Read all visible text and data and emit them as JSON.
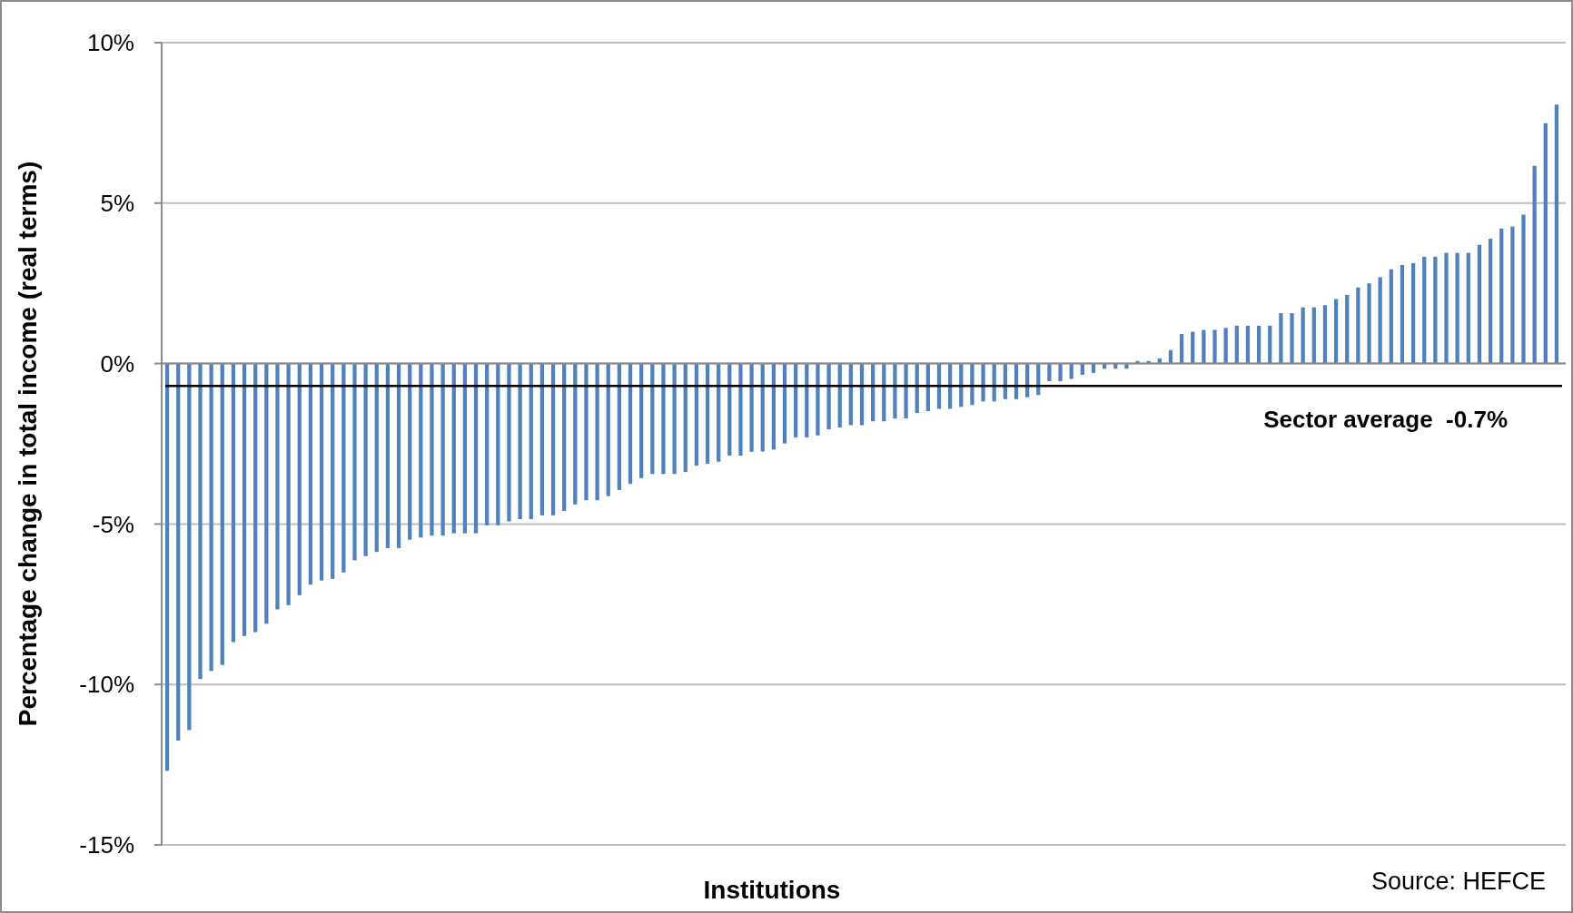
{
  "chart_data": {
    "type": "bar",
    "xlabel": "Institutions",
    "ylabel": "Percentage  change in total income (real terms)",
    "categories": [
      null,
      null,
      null,
      null,
      null,
      null,
      null,
      null,
      null,
      null,
      null,
      null,
      null,
      null,
      null,
      null,
      null,
      null,
      null,
      null,
      null,
      null,
      null,
      null,
      null,
      null,
      null,
      null,
      null,
      null,
      null,
      null,
      null,
      null,
      null,
      null,
      null,
      null,
      null,
      null,
      null,
      null,
      null,
      null,
      null,
      null,
      null,
      null,
      null,
      null,
      null,
      null,
      null,
      null,
      null,
      null,
      null,
      null,
      null,
      null,
      null,
      null,
      null,
      null,
      null,
      null,
      null,
      null,
      null,
      null,
      null,
      null,
      null,
      null,
      null,
      null,
      null,
      null,
      null,
      null,
      null,
      null,
      null,
      null,
      null,
      null,
      null,
      null,
      null,
      null,
      null,
      null,
      null,
      null,
      null,
      null,
      null,
      null,
      null,
      null,
      null,
      null,
      null,
      null,
      null,
      null,
      null,
      null,
      null,
      null,
      null,
      null,
      null,
      null,
      null,
      null,
      null,
      null,
      null,
      null,
      null,
      null,
      null,
      null,
      null,
      null,
      null
    ],
    "values": [
      -12.69,
      -11.75,
      -11.42,
      -9.83,
      -9.58,
      -9.39,
      -8.68,
      -8.49,
      -8.37,
      -8.11,
      -7.66,
      -7.53,
      -7.22,
      -6.89,
      -6.76,
      -6.71,
      -6.51,
      -6.13,
      -6.0,
      -5.87,
      -5.75,
      -5.75,
      -5.49,
      -5.42,
      -5.36,
      -5.36,
      -5.29,
      -5.29,
      -5.29,
      -5.04,
      -5.04,
      -4.92,
      -4.85,
      -4.85,
      -4.73,
      -4.73,
      -4.59,
      -4.39,
      -4.26,
      -4.26,
      -4.13,
      -3.94,
      -3.75,
      -3.57,
      -3.44,
      -3.44,
      -3.44,
      -3.38,
      -3.18,
      -3.12,
      -3.06,
      -2.87,
      -2.87,
      -2.75,
      -2.74,
      -2.68,
      -2.49,
      -2.3,
      -2.3,
      -2.24,
      -2.05,
      -1.99,
      -1.92,
      -1.92,
      -1.8,
      -1.8,
      -1.71,
      -1.71,
      -1.54,
      -1.48,
      -1.41,
      -1.41,
      -1.35,
      -1.29,
      -1.18,
      -1.18,
      -1.11,
      -1.11,
      -1.05,
      -0.98,
      -0.55,
      -0.55,
      -0.48,
      -0.35,
      -0.29,
      -0.16,
      -0.16,
      -0.16,
      0.08,
      0.08,
      0.16,
      0.42,
      0.92,
      0.99,
      1.05,
      1.05,
      1.11,
      1.18,
      1.18,
      1.18,
      1.18,
      1.57,
      1.57,
      1.75,
      1.75,
      1.82,
      2.01,
      2.14,
      2.37,
      2.5,
      2.69,
      2.94,
      3.07,
      3.13,
      3.33,
      3.33,
      3.45,
      3.45,
      3.45,
      3.7,
      3.89,
      4.21,
      4.27,
      4.64,
      6.16,
      7.49,
      8.07
    ],
    "color": "#4f81bd",
    "ylim": [
      -15,
      10
    ],
    "yticks": [
      {
        "value": -15,
        "label": "-15%"
      },
      {
        "value": -10,
        "label": "-10%"
      },
      {
        "value": -5,
        "label": "-5%"
      },
      {
        "value": 0,
        "label": "0%"
      },
      {
        "value": 5,
        "label": "5%"
      },
      {
        "value": 10,
        "label": "10%"
      }
    ],
    "grid": "y",
    "ref_lines": [
      {
        "axis": "y",
        "value": -0.7,
        "label": "Sector average  -0.7%",
        "color": "#000000"
      }
    ],
    "annotations": [
      "Source: HEFCE"
    ]
  }
}
